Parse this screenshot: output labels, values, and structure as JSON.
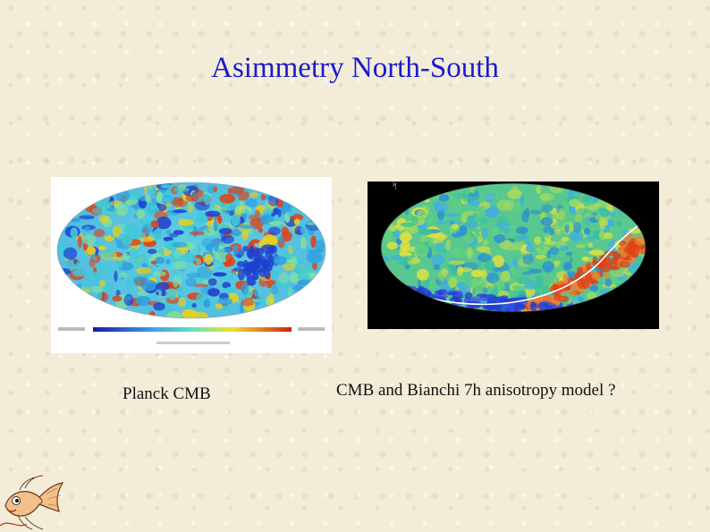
{
  "slide": {
    "title": "Asimmetry North-South"
  },
  "figures": [
    {
      "caption": "Planck CMB"
    },
    {
      "caption": "CMB and Bianchi 7h anisotropy model ?"
    }
  ],
  "colors": {
    "title": "#1a1acc",
    "background": "#f3ecd9",
    "cmb_cold": "#1f3fd0",
    "cmb_mid": "#40c8d8",
    "cmb_warm": "#e8d020",
    "cmb_hot": "#e04018"
  },
  "icons": {
    "logo": "fish-mascot-icon"
  }
}
